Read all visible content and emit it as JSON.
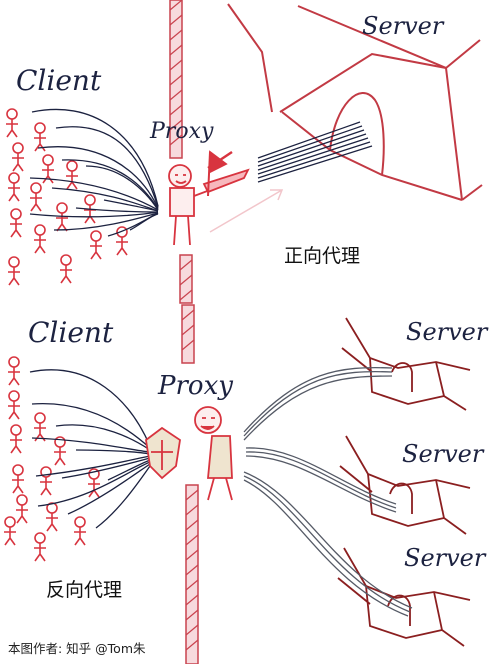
{
  "forward": {
    "client_label": "Client",
    "proxy_label": "Proxy",
    "server_label": "Server",
    "caption": "正向代理"
  },
  "reverse": {
    "client_label": "Client",
    "proxy_label": "Proxy",
    "server_labels": [
      "Server",
      "Server",
      "Server"
    ],
    "caption": "反向代理"
  },
  "credit": "本图作者: 知乎 @Tom朱",
  "colors": {
    "ink": "#1c2240",
    "red": "#d8343f",
    "wall_red": "#c9434e",
    "beige": "#efe4cf",
    "server_red": "#8b1f20"
  }
}
